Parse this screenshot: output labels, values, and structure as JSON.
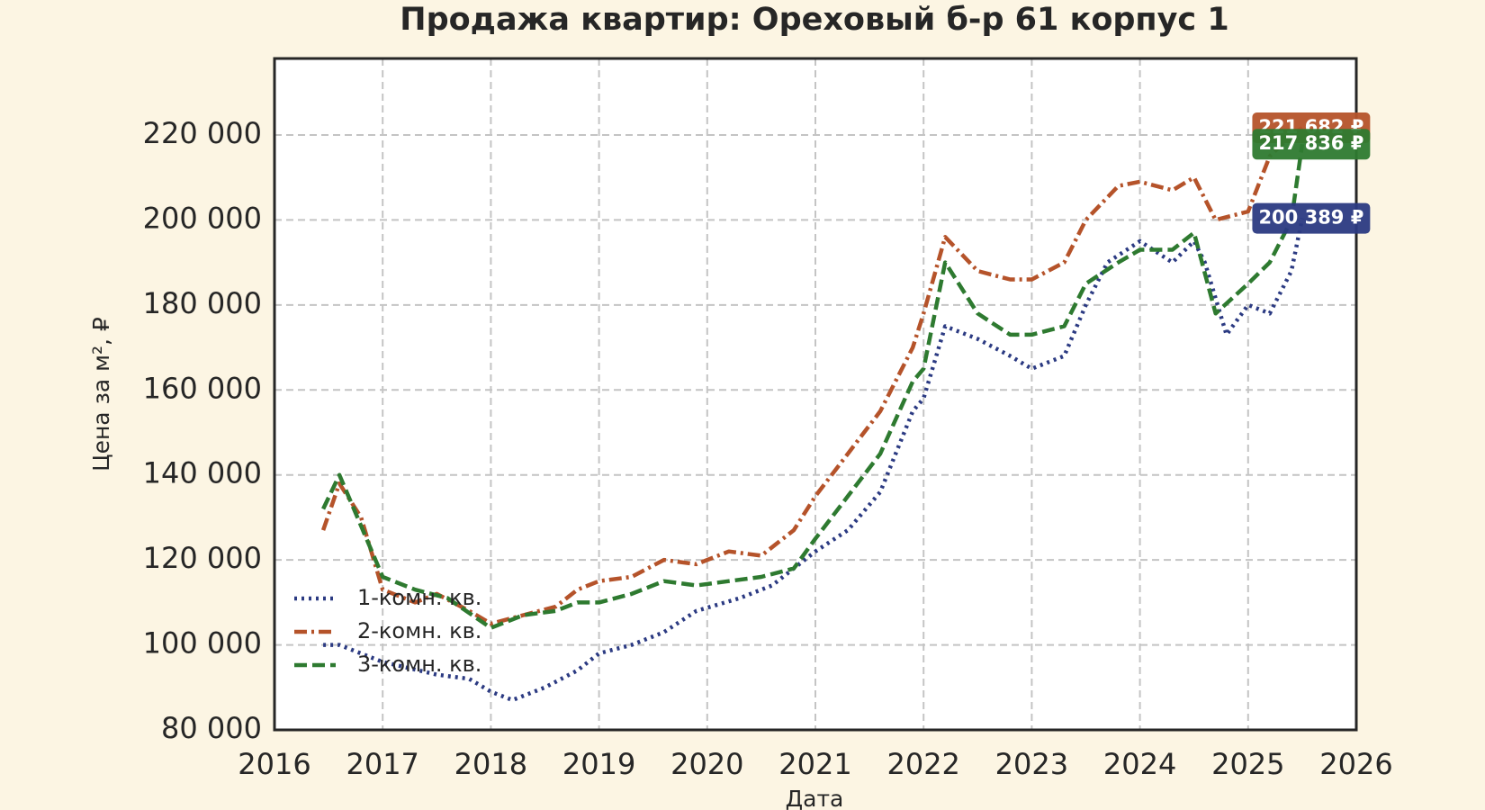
{
  "chart_data": {
    "type": "line",
    "title": "Продажа квартир: Ореховый б-р 61 корпус 1",
    "xlabel": "Дата",
    "ylabel": "Цена за м², ₽",
    "xlim": [
      2016,
      2026
    ],
    "xticks": [
      2016,
      2017,
      2018,
      2019,
      2020,
      2021,
      2022,
      2023,
      2024,
      2025,
      2026
    ],
    "ylim": [
      80000,
      238000
    ],
    "yticks": [
      {
        "value": 80000,
        "label": "80 000"
      },
      {
        "value": 100000,
        "label": "100 000"
      },
      {
        "value": 120000,
        "label": "120 000"
      },
      {
        "value": 140000,
        "label": "140 000"
      },
      {
        "value": 160000,
        "label": "160 000"
      },
      {
        "value": 180000,
        "label": "180 000"
      },
      {
        "value": 200000,
        "label": "200 000"
      },
      {
        "value": 220000,
        "label": "220 000"
      }
    ],
    "grid": true,
    "legend": "lower left",
    "series": [
      {
        "name": "1-комн. кв.",
        "color": "#2b3a82",
        "style": "dotted",
        "end_label": "200 389 ₽",
        "x": [
          2016.45,
          2016.6,
          2017,
          2017.5,
          2017.8,
          2018,
          2018.2,
          2018.5,
          2018.8,
          2019,
          2019.3,
          2019.6,
          2019.9,
          2020.3,
          2020.6,
          2021,
          2021.3,
          2021.6,
          2021.9,
          2022,
          2022.2,
          2022.5,
          2022.8,
          2023,
          2023.3,
          2023.5,
          2023.7,
          2024,
          2024.3,
          2024.5,
          2024.6,
          2024.8,
          2025,
          2025.2,
          2025.4,
          2025.5
        ],
        "values": [
          100000,
          100000,
          96000,
          93000,
          92000,
          89000,
          87000,
          90000,
          94000,
          98000,
          100000,
          103000,
          108000,
          111000,
          114000,
          122000,
          127000,
          136000,
          155000,
          158000,
          175000,
          172000,
          168000,
          165000,
          168000,
          180000,
          190000,
          195000,
          190000,
          195000,
          190000,
          173000,
          180000,
          178000,
          188000,
          200389
        ]
      },
      {
        "name": "2-комн. кв.",
        "color": "#b5532a",
        "style": "dashdot",
        "end_label": "221 682 ₽",
        "x": [
          2016.45,
          2016.6,
          2016.8,
          2017,
          2017.3,
          2017.5,
          2017.8,
          2018,
          2018.3,
          2018.6,
          2018.8,
          2019,
          2019.3,
          2019.6,
          2019.9,
          2020.2,
          2020.5,
          2020.8,
          2021,
          2021.3,
          2021.6,
          2021.9,
          2022,
          2022.2,
          2022.5,
          2022.8,
          2023,
          2023.3,
          2023.5,
          2023.8,
          2024,
          2024.3,
          2024.5,
          2024.7,
          2025,
          2025.2,
          2025.4,
          2025.5
        ],
        "values": [
          127000,
          138000,
          130000,
          113000,
          110000,
          112000,
          108000,
          105000,
          107000,
          109000,
          113000,
          115000,
          116000,
          120000,
          119000,
          122000,
          121000,
          127000,
          135000,
          145000,
          155000,
          170000,
          178000,
          196000,
          188000,
          186000,
          186000,
          190000,
          200000,
          208000,
          209000,
          207000,
          210000,
          200000,
          202000,
          215000,
          220000,
          221682
        ]
      },
      {
        "name": "3-комн. кв.",
        "color": "#2e7a30",
        "style": "dashed",
        "end_label": "217 836 ₽",
        "x": [
          2016.45,
          2016.6,
          2016.8,
          2017,
          2017.3,
          2017.6,
          2018,
          2018.3,
          2018.6,
          2018.8,
          2019,
          2019.3,
          2019.6,
          2019.9,
          2020.2,
          2020.5,
          2020.8,
          2021,
          2021.3,
          2021.6,
          2021.9,
          2022,
          2022.2,
          2022.5,
          2022.8,
          2023,
          2023.3,
          2023.5,
          2023.8,
          2024,
          2024.3,
          2024.5,
          2024.7,
          2025,
          2025.2,
          2025.4,
          2025.5
        ],
        "values": [
          132000,
          140000,
          128000,
          116000,
          113000,
          111000,
          104000,
          107000,
          108000,
          110000,
          110000,
          112000,
          115000,
          114000,
          115000,
          116000,
          118000,
          125000,
          135000,
          145000,
          162000,
          165000,
          190000,
          178000,
          173000,
          173000,
          175000,
          185000,
          190000,
          193000,
          193000,
          197000,
          178000,
          185000,
          190000,
          200000,
          217836
        ]
      }
    ]
  }
}
